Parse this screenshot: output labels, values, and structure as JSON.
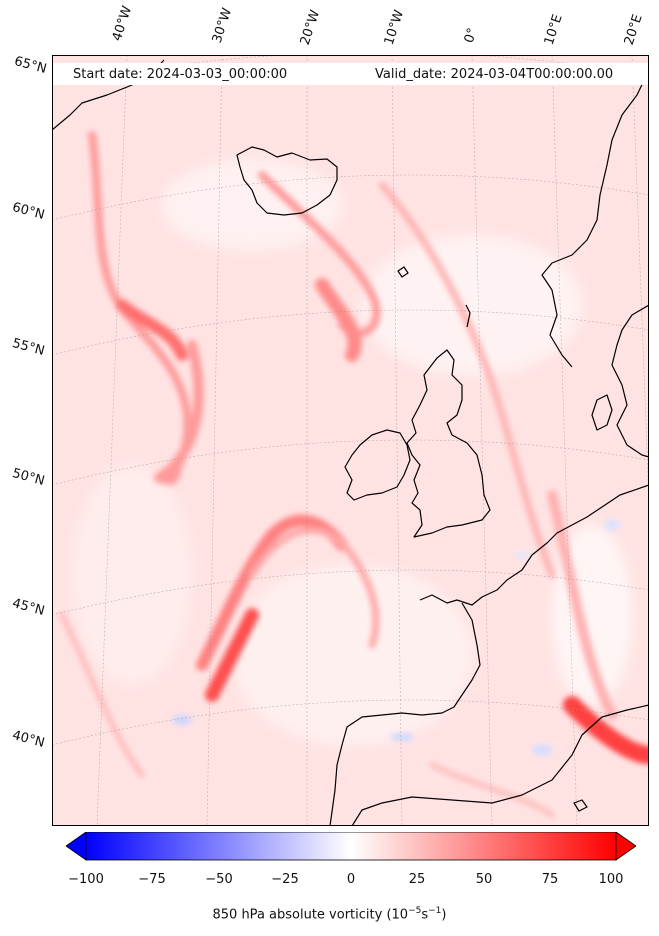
{
  "map": {
    "header_left": "Start date: 2024-03-03_00:00:00",
    "header_right": "Valid_date: 2024-03-04T00:00:00.00",
    "lon_labels": [
      "40°W",
      "30°W",
      "20°W",
      "10°W",
      "0°",
      "10°E",
      "20°E"
    ],
    "lat_labels": [
      "65°N",
      "60°N",
      "55°N",
      "50°N",
      "45°N",
      "40°N"
    ]
  },
  "colorbar": {
    "ticks": [
      "−100",
      "−75",
      "−50",
      "−25",
      "0",
      "25",
      "50",
      "75",
      "100"
    ],
    "label_prefix": "850 hPa absolute vorticity (10",
    "label_exp1": "−5",
    "label_mid": "s",
    "label_exp2": "−1",
    "label_suffix": ")",
    "colors": {
      "neg": "#0000ff",
      "zero": "#ffffff",
      "pos": "#ff0000"
    }
  }
}
